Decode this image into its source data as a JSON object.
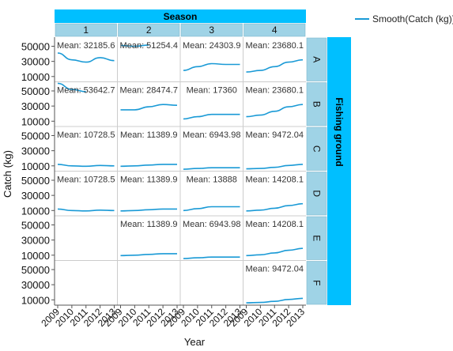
{
  "chart_data": {
    "type": "line",
    "top_strip_title": "Season",
    "right_strip_title": "Fishing ground",
    "ylabel": "Catch (kg)",
    "xlabel": "Year",
    "legend": "Smooth(Catch (kg))",
    "seasons": [
      "1",
      "2",
      "3",
      "4"
    ],
    "grounds": [
      "A",
      "B",
      "C",
      "D",
      "E",
      "F"
    ],
    "x_ticks": [
      "2009",
      "2010",
      "2011",
      "2012",
      "2013"
    ],
    "y_ticks": [
      50000,
      30000,
      10000
    ],
    "ylim": [
      3000,
      62000
    ],
    "xlim": [
      2009,
      2013
    ],
    "colors": {
      "strip": "#9fd3e6",
      "strip_dark": "#00bfff",
      "line": "#1a9ad6",
      "grid": "#cccccc"
    },
    "panels": [
      {
        "ground": "A",
        "season": "1",
        "mean": "Mean: 32185.6",
        "x": [
          2009,
          2010,
          2011,
          2012,
          2013
        ],
        "y": [
          41000,
          32000,
          29000,
          35000,
          31000
        ]
      },
      {
        "ground": "A",
        "season": "2",
        "mean": "Mean: 51254.4",
        "x": [
          2009,
          2010,
          2011
        ],
        "y": [
          51000,
          50000,
          51500
        ]
      },
      {
        "ground": "A",
        "season": "3",
        "mean": "Mean: 24303.9",
        "x": [
          2009,
          2010,
          2011,
          2012,
          2013
        ],
        "y": [
          18000,
          23000,
          27000,
          26000,
          26000
        ]
      },
      {
        "ground": "A",
        "season": "4",
        "mean": "Mean: 23680.1",
        "x": [
          2009,
          2010,
          2011,
          2012,
          2013
        ],
        "y": [
          16000,
          18000,
          23000,
          29000,
          32000
        ]
      },
      {
        "ground": "B",
        "season": "1",
        "mean": "Mean: 53642.7",
        "x": [
          2009,
          2010,
          2011
        ],
        "y": [
          60000,
          52000,
          49000
        ]
      },
      {
        "ground": "B",
        "season": "2",
        "mean": "Mean: 28474.7",
        "x": [
          2009,
          2010,
          2011,
          2012,
          2013
        ],
        "y": [
          25000,
          25000,
          29000,
          32000,
          31000
        ]
      },
      {
        "ground": "B",
        "season": "3",
        "mean": "Mean: 17360",
        "x": [
          2009,
          2010,
          2011,
          2012,
          2013
        ],
        "y": [
          13000,
          16000,
          19000,
          19000,
          19000
        ]
      },
      {
        "ground": "B",
        "season": "4",
        "mean": "Mean: 23680.1",
        "x": [
          2009,
          2010,
          2011,
          2012,
          2013
        ],
        "y": [
          16000,
          18000,
          23000,
          29000,
          32000
        ]
      },
      {
        "ground": "C",
        "season": "1",
        "mean": "Mean: 10728.5",
        "x": [
          2009,
          2010,
          2011,
          2012,
          2013
        ],
        "y": [
          12000,
          10000,
          9500,
          10500,
          10000
        ]
      },
      {
        "ground": "C",
        "season": "2",
        "mean": "Mean: 11389.9",
        "x": [
          2009,
          2010,
          2011,
          2012,
          2013
        ],
        "y": [
          9500,
          10000,
          11000,
          12000,
          12000
        ]
      },
      {
        "ground": "C",
        "season": "3",
        "mean": "Mean: 6943.98",
        "x": [
          2009,
          2010,
          2011,
          2012,
          2013
        ],
        "y": [
          5500,
          6500,
          7500,
          7500,
          7500
        ]
      },
      {
        "ground": "C",
        "season": "4",
        "mean": "Mean: 9472.04",
        "x": [
          2009,
          2010,
          2011,
          2012,
          2013
        ],
        "y": [
          6000,
          6500,
          8000,
          10500,
          12000
        ]
      },
      {
        "ground": "D",
        "season": "1",
        "mean": "Mean: 10728.5",
        "x": [
          2009,
          2010,
          2011,
          2012,
          2013
        ],
        "y": [
          12000,
          10000,
          9500,
          10500,
          10000
        ]
      },
      {
        "ground": "D",
        "season": "2",
        "mean": "Mean: 11389.9",
        "x": [
          2009,
          2010,
          2011,
          2012,
          2013
        ],
        "y": [
          9500,
          10000,
          11000,
          12000,
          12000
        ]
      },
      {
        "ground": "D",
        "season": "3",
        "mean": "Mean: 13888",
        "x": [
          2009,
          2010,
          2011,
          2012,
          2013
        ],
        "y": [
          10000,
          12500,
          15000,
          15000,
          15000
        ]
      },
      {
        "ground": "D",
        "season": "4",
        "mean": "Mean: 14208.1",
        "x": [
          2009,
          2010,
          2011,
          2012,
          2013
        ],
        "y": [
          9500,
          10500,
          13000,
          16500,
          19000
        ]
      },
      {
        "ground": "E",
        "season": "2",
        "mean": "Mean: 11389.9",
        "x": [
          2009,
          2010,
          2011,
          2012,
          2013
        ],
        "y": [
          9500,
          10000,
          11000,
          12000,
          12000
        ]
      },
      {
        "ground": "E",
        "season": "3",
        "mean": "Mean: 6943.98",
        "x": [
          2009,
          2010,
          2011,
          2012,
          2013
        ],
        "y": [
          5500,
          6500,
          7500,
          7500,
          7500
        ]
      },
      {
        "ground": "E",
        "season": "4",
        "mean": "Mean: 14208.1",
        "x": [
          2009,
          2010,
          2011,
          2012,
          2013
        ],
        "y": [
          9500,
          10500,
          13000,
          16500,
          19000
        ]
      },
      {
        "ground": "F",
        "season": "4",
        "mean": "Mean: 9472.04",
        "x": [
          2009,
          2010,
          2011,
          2012,
          2013
        ],
        "y": [
          6000,
          6500,
          8000,
          10500,
          12000
        ]
      }
    ]
  }
}
